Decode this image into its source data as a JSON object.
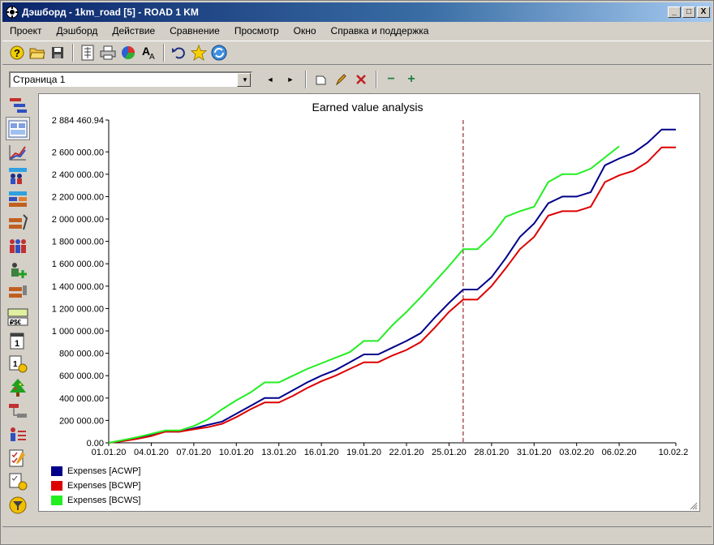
{
  "window": {
    "title": "Дэшборд - 1km_road [5] - ROAD 1 KM",
    "controls": {
      "minimize": "_",
      "maximize": "□",
      "close": "X"
    }
  },
  "menu": [
    "Проект",
    "Дэшборд",
    "Действие",
    "Сравнение",
    "Просмотр",
    "Окно",
    "Справка и поддержка"
  ],
  "toolbar": {
    "icons": [
      "help-icon",
      "open-folder-icon",
      "save-icon",
      "layout-icon",
      "print-icon",
      "pie-chart-icon",
      "font-icon",
      "undo-icon",
      "star-icon",
      "refresh-icon"
    ]
  },
  "page_toolbar": {
    "selected_page": "Страница 1",
    "prev": "◄",
    "next": "►",
    "zoom_out": "−",
    "zoom_in": "+"
  },
  "sidebar": {
    "icons": [
      "gantt-icon",
      "dashboard-icon",
      "chart-lines-icon",
      "resources-icon",
      "bars-icon",
      "tasks-tools-icon",
      "people-icon",
      "people-add-icon",
      "materials-icon",
      "currency-icon",
      "calendar-icon",
      "calendar-clock-icon",
      "tree-icon",
      "links-icon",
      "assignment-icon",
      "checklist-icon",
      "checklist-clock-icon",
      "filter-icon"
    ]
  },
  "chart_data": {
    "type": "line",
    "title": "Earned value analysis",
    "x_tick_labels": [
      "01.01.20",
      "04.01.20",
      "07.01.20",
      "10.01.20",
      "13.01.20",
      "16.01.20",
      "19.01.20",
      "22.01.20",
      "25.01.20",
      "28.01.20",
      "31.01.20",
      "03.02.20",
      "06.02.20",
      "10.02.20"
    ],
    "y_tick_labels": [
      "0.00",
      "200 000.00",
      "400 000.00",
      "600 000.00",
      "800 000.00",
      "1 000 000.00",
      "1 200 000.00",
      "1 400 000.00",
      "1 600 000.00",
      "1 800 000.00",
      "2 000 000.00",
      "2 200 000.00",
      "2 400 000.00",
      "2 600 000.00",
      "2 884 460.94"
    ],
    "ylim": [
      0,
      2884460.94
    ],
    "xlim_days": [
      "01.01.20",
      "10.02.20"
    ],
    "status_date": "26.01.20",
    "series": [
      {
        "name": "Expenses [ACWP]",
        "color": "#00008b",
        "points": [
          [
            "01.01.20",
            0
          ],
          [
            "02.01.20",
            20000
          ],
          [
            "03.01.20",
            40000
          ],
          [
            "04.01.20",
            70000
          ],
          [
            "05.01.20",
            100000
          ],
          [
            "06.01.20",
            100000
          ],
          [
            "07.01.20",
            130000
          ],
          [
            "08.01.20",
            160000
          ],
          [
            "09.01.20",
            190000
          ],
          [
            "10.01.20",
            260000
          ],
          [
            "11.01.20",
            330000
          ],
          [
            "12.01.20",
            400000
          ],
          [
            "13.01.20",
            400000
          ],
          [
            "14.01.20",
            470000
          ],
          [
            "15.01.20",
            540000
          ],
          [
            "16.01.20",
            600000
          ],
          [
            "17.01.20",
            650000
          ],
          [
            "18.01.20",
            720000
          ],
          [
            "19.01.20",
            790000
          ],
          [
            "20.01.20",
            790000
          ],
          [
            "21.01.20",
            850000
          ],
          [
            "22.01.20",
            910000
          ],
          [
            "23.01.20",
            980000
          ],
          [
            "24.01.20",
            1120000
          ],
          [
            "25.01.20",
            1250000
          ],
          [
            "26.01.20",
            1370000
          ],
          [
            "27.01.20",
            1370000
          ],
          [
            "28.01.20",
            1480000
          ],
          [
            "29.01.20",
            1650000
          ],
          [
            "30.01.20",
            1840000
          ],
          [
            "31.01.20",
            1960000
          ],
          [
            "01.02.20",
            2140000
          ],
          [
            "02.02.20",
            2200000
          ],
          [
            "03.02.20",
            2200000
          ],
          [
            "04.02.20",
            2240000
          ],
          [
            "05.02.20",
            2480000
          ],
          [
            "06.02.20",
            2540000
          ],
          [
            "07.02.20",
            2590000
          ],
          [
            "08.02.20",
            2680000
          ],
          [
            "09.02.20",
            2800000
          ],
          [
            "10.02.20",
            2800000
          ]
        ]
      },
      {
        "name": "Expenses [BCWP]",
        "color": "#dd0000",
        "points": [
          [
            "01.01.20",
            0
          ],
          [
            "02.01.20",
            15000
          ],
          [
            "03.01.20",
            35000
          ],
          [
            "04.01.20",
            60000
          ],
          [
            "05.01.20",
            100000
          ],
          [
            "06.01.20",
            100000
          ],
          [
            "07.01.20",
            120000
          ],
          [
            "08.01.20",
            140000
          ],
          [
            "09.01.20",
            170000
          ],
          [
            "10.01.20",
            230000
          ],
          [
            "11.01.20",
            300000
          ],
          [
            "12.01.20",
            360000
          ],
          [
            "13.01.20",
            360000
          ],
          [
            "14.01.20",
            420000
          ],
          [
            "15.01.20",
            490000
          ],
          [
            "16.01.20",
            550000
          ],
          [
            "17.01.20",
            600000
          ],
          [
            "18.01.20",
            660000
          ],
          [
            "19.01.20",
            720000
          ],
          [
            "20.01.20",
            720000
          ],
          [
            "21.01.20",
            780000
          ],
          [
            "22.01.20",
            830000
          ],
          [
            "23.01.20",
            900000
          ],
          [
            "24.01.20",
            1030000
          ],
          [
            "25.01.20",
            1170000
          ],
          [
            "26.01.20",
            1280000
          ],
          [
            "27.01.20",
            1280000
          ],
          [
            "28.01.20",
            1400000
          ],
          [
            "29.01.20",
            1560000
          ],
          [
            "30.01.20",
            1730000
          ],
          [
            "31.01.20",
            1840000
          ],
          [
            "01.02.20",
            2030000
          ],
          [
            "02.02.20",
            2070000
          ],
          [
            "03.02.20",
            2070000
          ],
          [
            "04.02.20",
            2110000
          ],
          [
            "05.02.20",
            2330000
          ],
          [
            "06.02.20",
            2390000
          ],
          [
            "07.02.20",
            2430000
          ],
          [
            "08.02.20",
            2510000
          ],
          [
            "09.02.20",
            2640000
          ],
          [
            "10.02.20",
            2640000
          ]
        ]
      },
      {
        "name": "Expenses [BCWS]",
        "color": "#22ee22",
        "points": [
          [
            "01.01.20",
            0
          ],
          [
            "02.01.20",
            25000
          ],
          [
            "03.01.20",
            50000
          ],
          [
            "04.01.20",
            80000
          ],
          [
            "05.01.20",
            110000
          ],
          [
            "06.01.20",
            110000
          ],
          [
            "07.01.20",
            150000
          ],
          [
            "08.01.20",
            210000
          ],
          [
            "09.01.20",
            300000
          ],
          [
            "10.01.20",
            380000
          ],
          [
            "11.01.20",
            450000
          ],
          [
            "12.01.20",
            540000
          ],
          [
            "13.01.20",
            540000
          ],
          [
            "14.01.20",
            600000
          ],
          [
            "15.01.20",
            660000
          ],
          [
            "16.01.20",
            710000
          ],
          [
            "17.01.20",
            760000
          ],
          [
            "18.01.20",
            810000
          ],
          [
            "19.01.20",
            910000
          ],
          [
            "20.01.20",
            910000
          ],
          [
            "21.01.20",
            1050000
          ],
          [
            "22.01.20",
            1170000
          ],
          [
            "23.01.20",
            1300000
          ],
          [
            "24.01.20",
            1440000
          ],
          [
            "25.01.20",
            1580000
          ],
          [
            "26.01.20",
            1730000
          ],
          [
            "27.01.20",
            1730000
          ],
          [
            "28.01.20",
            1850000
          ],
          [
            "29.01.20",
            2020000
          ],
          [
            "30.01.20",
            2070000
          ],
          [
            "31.01.20",
            2110000
          ],
          [
            "01.02.20",
            2330000
          ],
          [
            "02.02.20",
            2400000
          ],
          [
            "03.02.20",
            2400000
          ],
          [
            "04.02.20",
            2450000
          ],
          [
            "05.02.20",
            2550000
          ],
          [
            "06.02.20",
            2650000
          ]
        ]
      }
    ],
    "grid": false,
    "legend_position": "bottom-left"
  }
}
